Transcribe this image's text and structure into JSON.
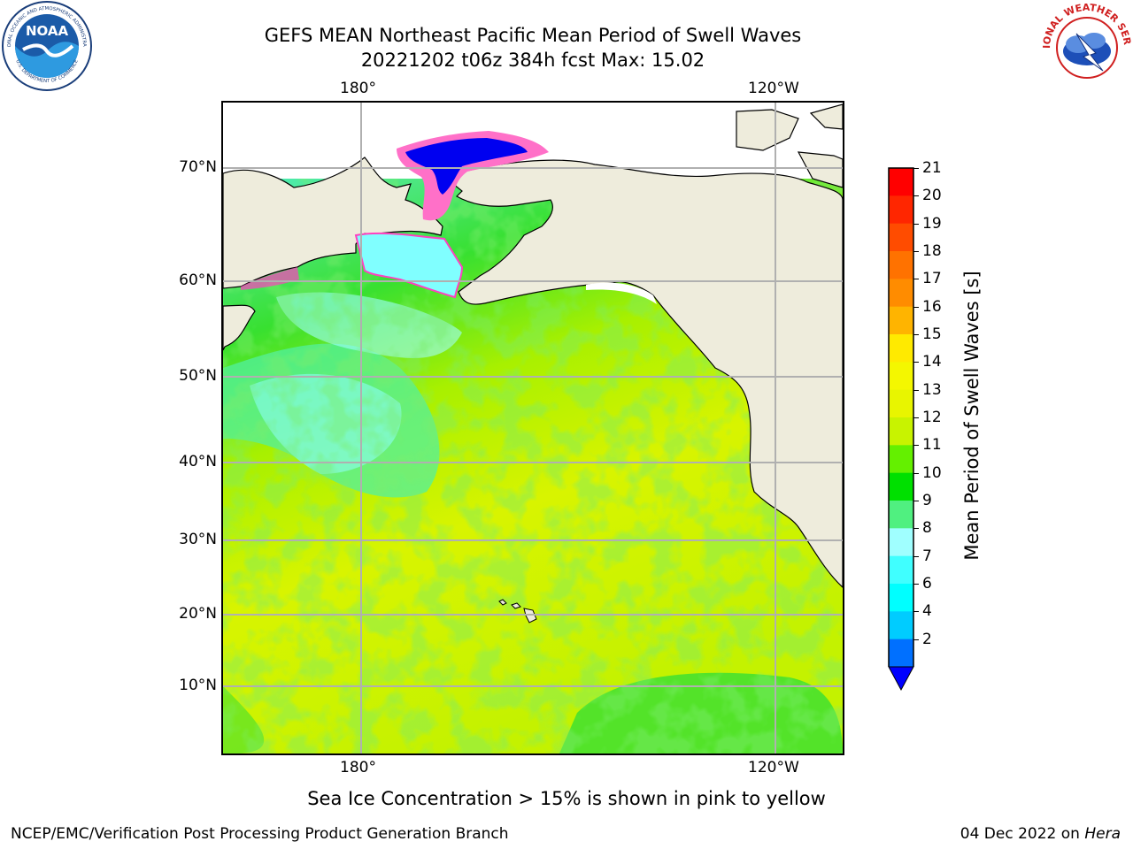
{
  "header": {
    "title": "GEFS MEAN Northeast Pacific Mean Period of Swell Waves",
    "subtitle": "20221202 t06z 384h fcst   Max: 15.02"
  },
  "map": {
    "lon_labels": [
      "180°",
      "120°W"
    ],
    "lat_labels": [
      "70°N",
      "60°N",
      "50°N",
      "40°N",
      "30°N",
      "20°N",
      "10°N"
    ]
  },
  "colorbar": {
    "label": "Mean Period of Swell Waves [s]",
    "ticks": [
      "21",
      "20",
      "19",
      "18",
      "17",
      "16",
      "15",
      "14",
      "13",
      "12",
      "11",
      "10",
      "9",
      "8",
      "7",
      "6",
      "4",
      "2"
    ],
    "colors": [
      "#ff0000",
      "#ff2600",
      "#ff4c00",
      "#ff7200",
      "#ff8c00",
      "#ffb400",
      "#ffea00",
      "#f4f700",
      "#e8f500",
      "#c8f300",
      "#64f000",
      "#00e000",
      "#50f080",
      "#a0ffff",
      "#40ffff",
      "#00ffff",
      "#00ccff",
      "#0070ff"
    ],
    "under_color": "#0000ff"
  },
  "footer": {
    "note": "Sea Ice Concentration > 15% is shown in pink to yellow",
    "credit": "NCEP/EMC/Verification Post Processing Product Generation Branch",
    "date": "04 Dec 2022 on",
    "host": "Hera"
  },
  "logos": {
    "noaa_text": "NOAA",
    "noaa_ring": "NATIONAL OCEANIC AND ATMOSPHERIC ADMINISTRATION",
    "noaa_ring_bottom": "U.S. DEPARTMENT OF COMMERCE",
    "nws_ring": "NATIONAL WEATHER SERVICE"
  }
}
